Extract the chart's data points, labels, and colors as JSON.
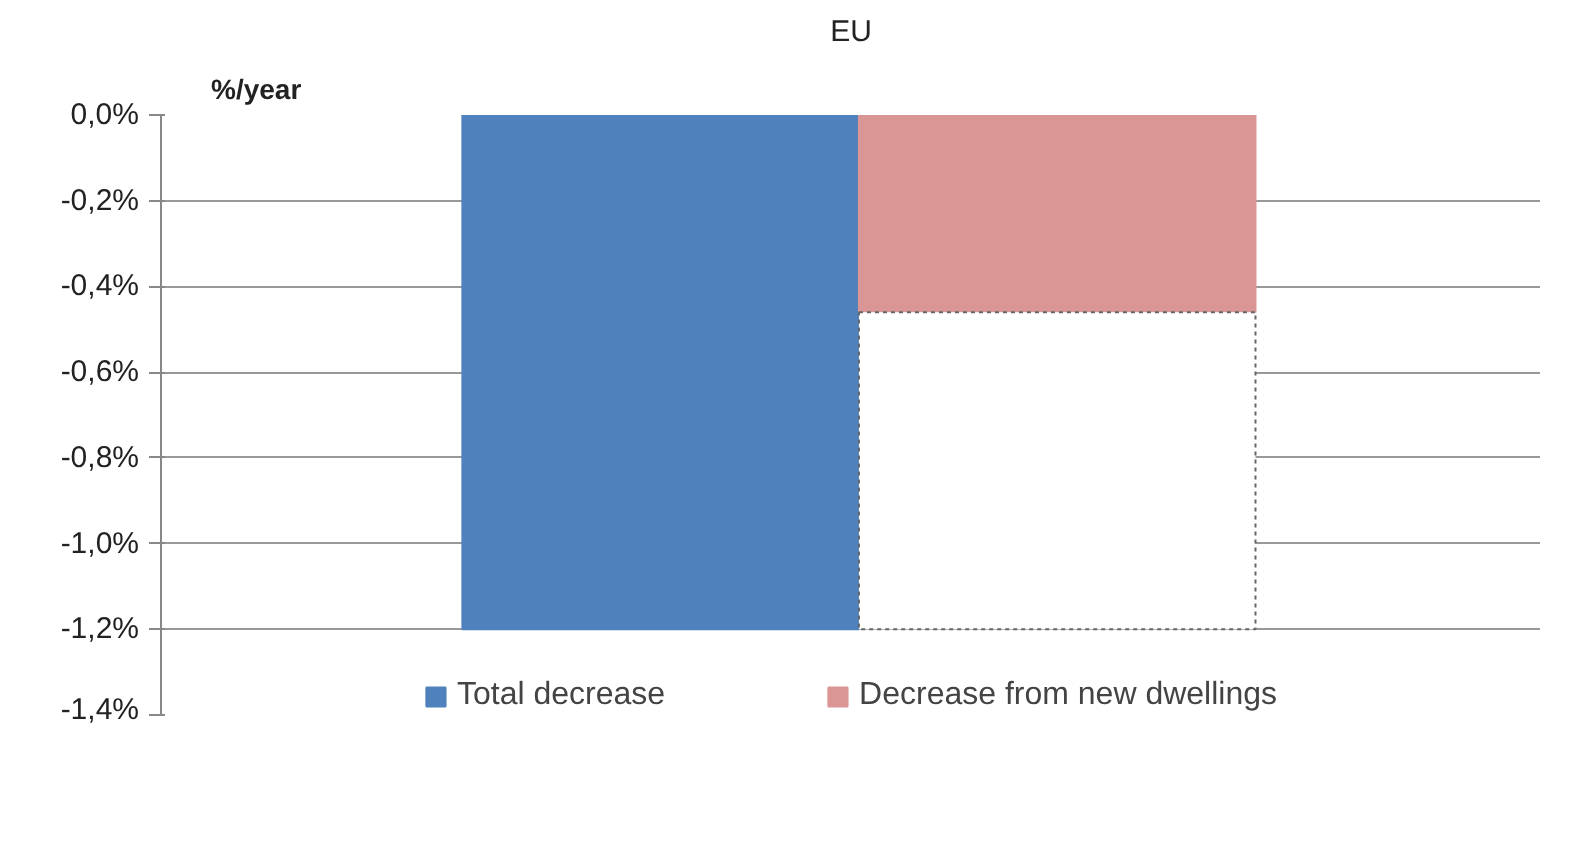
{
  "chart_data": {
    "type": "bar",
    "title": "EU",
    "ylabel": "%/year",
    "categories": [
      null,
      null
    ],
    "stacked": true,
    "series": [
      {
        "name": "Total decrease",
        "color": "#4f81bd",
        "values": [
          -1.2,
          null
        ]
      },
      {
        "name": "Decrease from new dwellings",
        "color": "#d99694",
        "values": [
          null,
          -0.46
        ]
      },
      {
        "color": "#ffffff",
        "values": [
          null,
          -0.74
        ],
        "line_style": "dotted"
      }
    ],
    "ylim": [
      -1.4,
      0
    ],
    "yticks": [
      {
        "value": 0,
        "label": "0,0%"
      },
      {
        "value": -0.2,
        "label": "-0,2%"
      },
      {
        "value": -0.4,
        "label": "-0,4%"
      },
      {
        "value": -0.6,
        "label": "-0,6%"
      },
      {
        "value": -0.8,
        "label": "-0,8%"
      },
      {
        "value": -1.0,
        "label": "-1,0%"
      },
      {
        "value": -1.2,
        "label": "-1,2%"
      },
      {
        "value": -1.4,
        "label": "-1,4%"
      }
    ],
    "grid": "y",
    "legend": "bottom"
  }
}
